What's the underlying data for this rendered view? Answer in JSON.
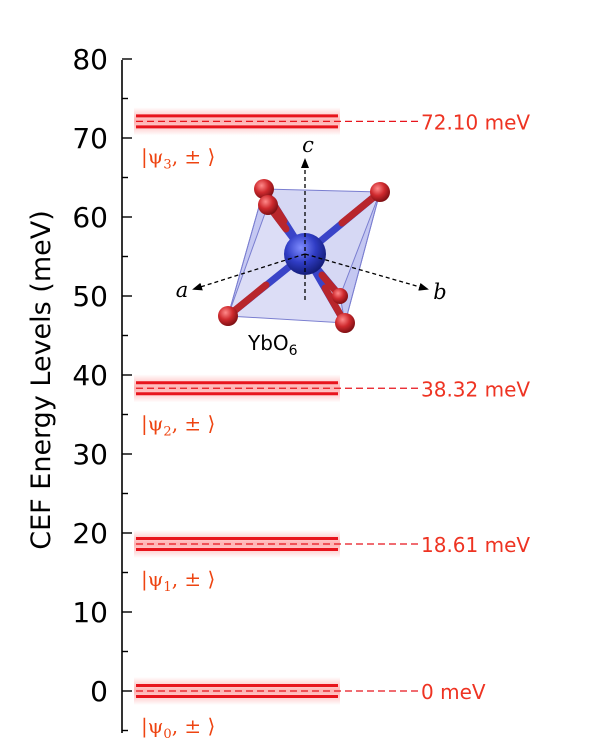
{
  "chart_data": {
    "type": "table",
    "ylabel": "CEF Energy Levels (meV)",
    "ylim": [
      -5,
      80
    ],
    "yticks": [
      0,
      10,
      20,
      30,
      40,
      50,
      60,
      70,
      80
    ],
    "levels": [
      {
        "energy": 0,
        "label": "0 meV",
        "ket_base": "|ψ",
        "ket_sub": "0",
        "ket_end": ", ± ⟩"
      },
      {
        "energy": 18.61,
        "label": "18.61 meV",
        "ket_base": "|ψ",
        "ket_sub": "1",
        "ket_end": ", ± ⟩"
      },
      {
        "energy": 38.32,
        "label": "38.32 meV",
        "ket_base": "|ψ",
        "ket_sub": "2",
        "ket_end": ", ± ⟩"
      },
      {
        "energy": 72.1,
        "label": "72.10 meV",
        "ket_base": "|ψ",
        "ket_sub": "3",
        "ket_end": ", ± ⟩"
      }
    ],
    "inset": {
      "label_base": "YbO",
      "label_sub": "6",
      "axes": [
        "a",
        "b",
        "c"
      ]
    },
    "colors": {
      "level": "#e8141c",
      "label": "#ee3322",
      "ket": "#ee4411",
      "metal": "#3340c8",
      "oxygen": "#c8282c",
      "octahedron": "#8a8ee0"
    }
  }
}
